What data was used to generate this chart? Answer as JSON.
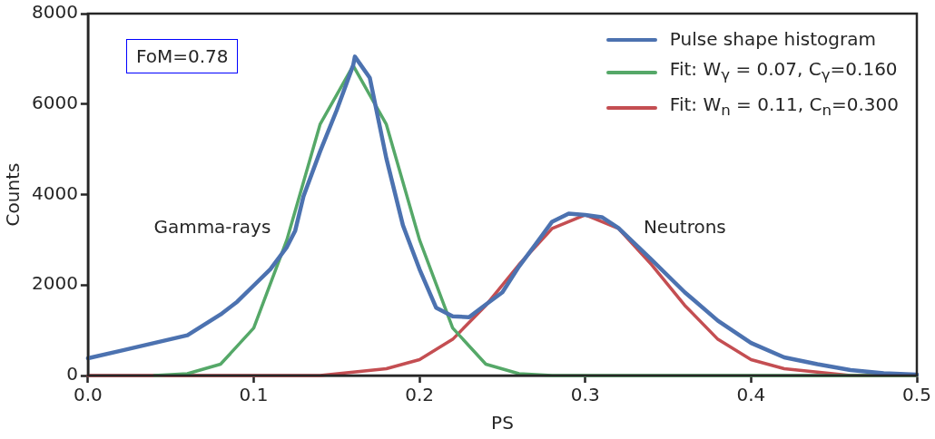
{
  "chart_data": {
    "type": "line",
    "xlabel": "PS",
    "ylabel": "Counts",
    "xlim": [
      0,
      0.5
    ],
    "ylim": [
      0,
      8000
    ],
    "xticks": [
      {
        "value": 0,
        "label": "0.0"
      },
      {
        "value": 0.1,
        "label": "0.1"
      },
      {
        "value": 0.2,
        "label": "0.2"
      },
      {
        "value": 0.3,
        "label": "0.3"
      },
      {
        "value": 0.4,
        "label": "0.4"
      },
      {
        "value": 0.5,
        "label": "0.5"
      }
    ],
    "yticks": [
      0,
      2000,
      4000,
      6000,
      8000
    ],
    "grid": false,
    "legend": "top right",
    "marker": "none",
    "line_style": "solid",
    "annotations": [
      "FoM=0.78",
      "Gamma-rays",
      "Neutrons"
    ],
    "series": [
      {
        "name": "Pulse shape histogram",
        "color": "#4c72b0",
        "x": [
          0,
          0.02,
          0.04,
          0.06,
          0.08,
          0.09,
          0.1,
          0.11,
          0.12,
          0.125,
          0.13,
          0.14,
          0.15,
          0.16,
          0.161,
          0.17,
          0.18,
          0.19,
          0.2,
          0.21,
          0.22,
          0.23,
          0.24,
          0.25,
          0.26,
          0.27,
          0.28,
          0.29,
          0.3,
          0.31,
          0.32,
          0.34,
          0.36,
          0.38,
          0.4,
          0.42,
          0.44,
          0.46,
          0.48,
          0.5
        ],
        "values": [
          380,
          550,
          720,
          890,
          1350,
          1630,
          1990,
          2350,
          2840,
          3200,
          3960,
          4950,
          5860,
          6860,
          7050,
          6580,
          4800,
          3320,
          2350,
          1500,
          1310,
          1290,
          1570,
          1840,
          2410,
          2900,
          3400,
          3580,
          3550,
          3500,
          3260,
          2560,
          1840,
          1210,
          720,
          400,
          250,
          120,
          50,
          20
        ]
      },
      {
        "name": "Fit: W$_{γ}$ = 0.07, C$_{γ}$=0.160",
        "color": "#55a868",
        "x": [
          0.04,
          0.06,
          0.08,
          0.1,
          0.12,
          0.14,
          0.16,
          0.18,
          0.2,
          0.22,
          0.24,
          0.26,
          0.28,
          0.3,
          0.5
        ],
        "values": [
          0,
          40,
          250,
          1050,
          3000,
          5550,
          6850,
          5550,
          3000,
          1050,
          250,
          40,
          0,
          0,
          0
        ]
      },
      {
        "name": "Fit: W$_{n}$ = 0.11, C$_{n}$=0.300",
        "color": "#c44e52",
        "x": [
          0,
          0.1,
          0.14,
          0.18,
          0.2,
          0.22,
          0.24,
          0.26,
          0.28,
          0.3,
          0.32,
          0.34,
          0.36,
          0.38,
          0.4,
          0.42,
          0.46,
          0.5
        ],
        "values": [
          0,
          0,
          0,
          150,
          350,
          800,
          1550,
          2450,
          3250,
          3550,
          3250,
          2450,
          1550,
          800,
          350,
          150,
          0,
          0
        ]
      }
    ]
  }
}
